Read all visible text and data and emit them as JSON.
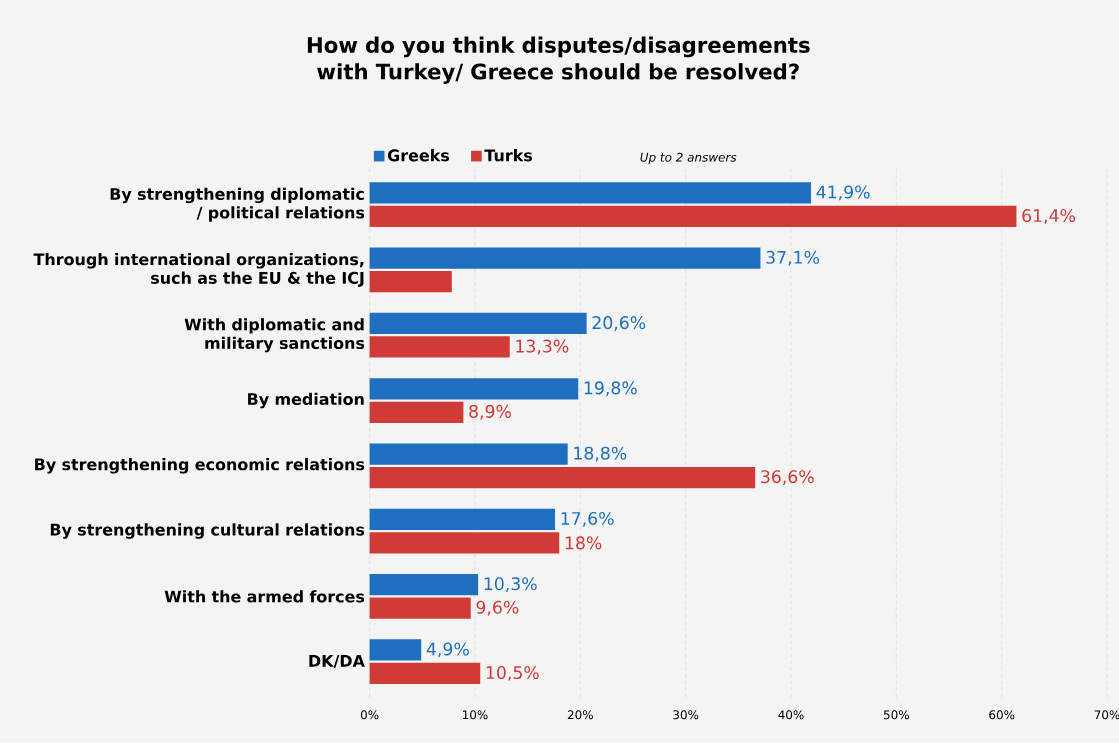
{
  "chart_data": {
    "type": "bar",
    "orientation": "horizontal",
    "title": "How do you think disputes/disagreements with Turkey/ Greece should be resolved?",
    "categories": [
      "By strengthening diplomatic / political relations",
      "Through international organizations, such as the EU & the ICJ",
      "With diplomatic and military sanctions",
      "By mediation",
      "By strengthening economic relations",
      "By strengthening cultural relations",
      "With the armed forces",
      "DK/DA"
    ],
    "series": [
      {
        "name": "Greeks",
        "color": "#1f6fc0",
        "values": [
          41.9,
          37.1,
          20.6,
          19.8,
          18.8,
          17.6,
          10.3,
          4.9
        ],
        "value_labels": [
          "41,9%",
          "37,1%",
          "20,6%",
          "19,8%",
          "18,8%",
          "17,6%",
          "10,3%",
          "4,9%"
        ]
      },
      {
        "name": "Turks",
        "color": "#d03a37",
        "values": [
          61.4,
          7.8,
          13.3,
          8.9,
          36.6,
          18,
          9.6,
          10.5
        ],
        "value_labels": [
          "61,4%",
          null,
          "13,3%",
          "8,9%",
          "36,6%",
          "18%",
          "9,6%",
          "10,5%"
        ]
      }
    ],
    "xlim": [
      0,
      70
    ],
    "xticks": [
      {
        "value": 0,
        "label": "0%"
      },
      {
        "value": 10,
        "label": "10%"
      },
      {
        "value": 20,
        "label": "20%"
      },
      {
        "value": 30,
        "label": "30%"
      },
      {
        "value": 40,
        "label": "40%"
      },
      {
        "value": 50,
        "label": "50%"
      },
      {
        "value": 60,
        "label": "60%"
      },
      {
        "value": 70,
        "label": "70%"
      }
    ],
    "grid": "x",
    "legend": "top left",
    "annotations": [
      "Up to 2 answers"
    ]
  }
}
